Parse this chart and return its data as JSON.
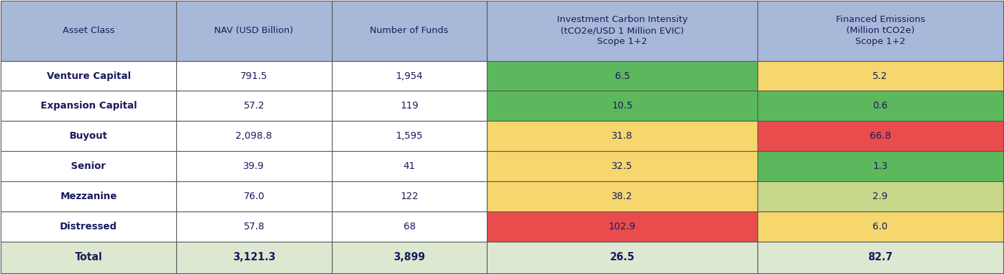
{
  "col_headers": [
    "Asset Class",
    "NAV (USD Billion)",
    "Number of Funds",
    "Investment Carbon Intensity\n(tCO2e/USD 1 Million EVIC)\nScope 1+2",
    "Financed Emissions\n(Million tCO2e)\nScope 1+2"
  ],
  "rows": [
    [
      "Venture Capital",
      "791.5",
      "1,954",
      "6.5",
      "5.2"
    ],
    [
      "Expansion Capital",
      "57.2",
      "119",
      "10.5",
      "0.6"
    ],
    [
      "Buyout",
      "2,098.8",
      "1,595",
      "31.8",
      "66.8"
    ],
    [
      "Senior",
      "39.9",
      "41",
      "32.5",
      "1.3"
    ],
    [
      "Mezzanine",
      "76.0",
      "122",
      "38.2",
      "2.9"
    ],
    [
      "Distressed",
      "57.8",
      "68",
      "102.9",
      "6.0"
    ]
  ],
  "total_row": [
    "Total",
    "3,121.3",
    "3,899",
    "26.5",
    "82.7"
  ],
  "header_bg": "#a8b8d8",
  "header_text": "#1a1a5e",
  "col0_bg": "#ffffff",
  "col0_text": "#1a1a5e",
  "total_bg": "#dce8d0",
  "total_text": "#1a1a5e",
  "col3_colors": [
    "#5cb85c",
    "#5cb85c",
    "#f5d76e",
    "#f5d76e",
    "#f5d76e",
    "#e84c4c"
  ],
  "col4_colors": [
    "#f5d76e",
    "#5cb85c",
    "#e84c4c",
    "#5cb85c",
    "#c8d88a",
    "#f5d76e"
  ],
  "data_text_color": "#1a1a5e",
  "border_color": "#555555",
  "fig_bg": "#ffffff"
}
